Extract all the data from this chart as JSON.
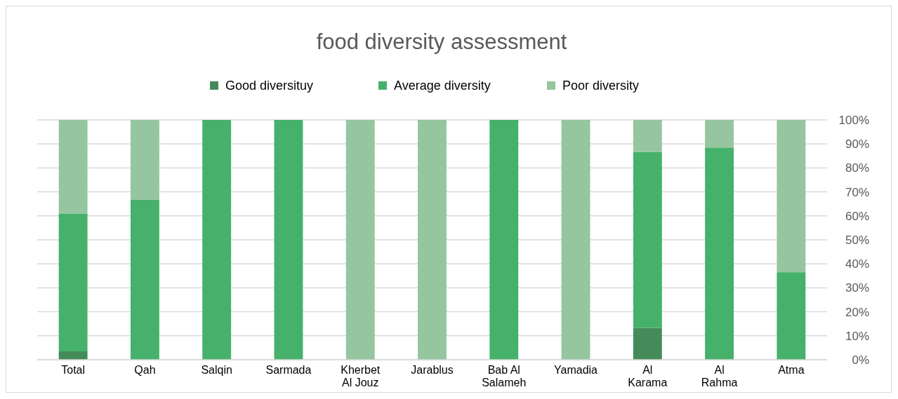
{
  "chart_data": {
    "type": "bar",
    "title": "food diversity assessment",
    "categories": [
      "Total",
      "Qah",
      "Salqin",
      "Sarmada",
      "Kherbet Al Jouz",
      "Jarablus",
      "Bab Al Salameh",
      "Yamadia",
      "Al Karama",
      "Al Rahma",
      "Atma"
    ],
    "series": [
      {
        "name": "Good diversituy",
        "color": "#458b5a",
        "values": [
          3.5,
          0,
          0,
          0,
          0,
          0,
          0,
          0,
          13.3,
          0,
          0
        ]
      },
      {
        "name": "Average diversity",
        "color": "#46b16a",
        "values": [
          57.5,
          66.7,
          100,
          100,
          0,
          0,
          100,
          0,
          73.4,
          88.5,
          36.5
        ]
      },
      {
        "name": "Poor diversity",
        "color": "#95c69f",
        "values": [
          39,
          33.3,
          0,
          0,
          100,
          100,
          0,
          100,
          13.3,
          11.5,
          63.5
        ]
      }
    ],
    "stacked": true,
    "ylim": [
      0,
      100
    ],
    "yticks": [
      {
        "value": 0,
        "label": "0%"
      },
      {
        "value": 10,
        "label": "10%"
      },
      {
        "value": 20,
        "label": "20%"
      },
      {
        "value": 30,
        "label": "30%"
      },
      {
        "value": 40,
        "label": "40%"
      },
      {
        "value": 50,
        "label": "50%"
      },
      {
        "value": 60,
        "label": "60%"
      },
      {
        "value": 70,
        "label": "70%"
      },
      {
        "value": 80,
        "label": "80%"
      },
      {
        "value": 90,
        "label": "90%"
      },
      {
        "value": 100,
        "label": "100%"
      }
    ],
    "grid": "y",
    "legend": "top"
  }
}
